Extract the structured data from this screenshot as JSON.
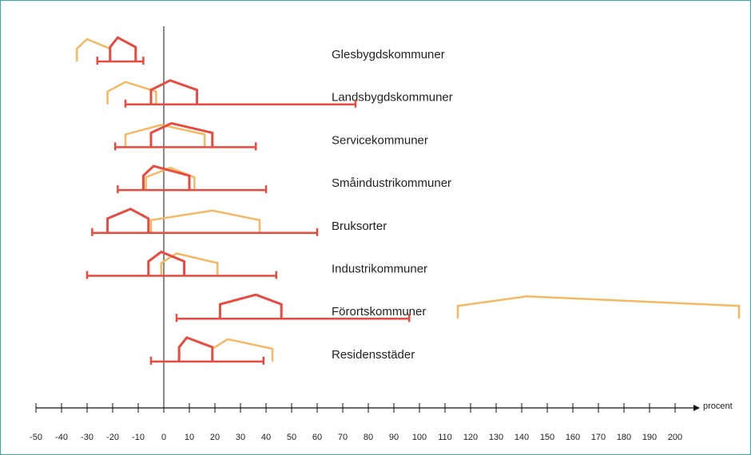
{
  "chart_data": {
    "type": "range-house",
    "x_axis_label": "procent",
    "xlim": [
      -50,
      200
    ],
    "xticks": [
      -50,
      -40,
      -30,
      -20,
      -10,
      0,
      10,
      20,
      30,
      40,
      50,
      60,
      70,
      80,
      90,
      100,
      110,
      120,
      130,
      140,
      150,
      160,
      170,
      180,
      190,
      200
    ],
    "red_color": "#e84a3f",
    "orange_color": "#f5b860",
    "rows": [
      {
        "label": "Glesbygdskommuner",
        "range": [
          -26,
          -8
        ],
        "red": [
          -21,
          -18,
          -11
        ],
        "orange": [
          -34,
          -30,
          -21
        ]
      },
      {
        "label": "Landsbygdskommuner",
        "range": [
          -15,
          75
        ],
        "red": [
          -5,
          2.5,
          13
        ],
        "orange": [
          -22,
          -15,
          -3
        ]
      },
      {
        "label": "Servicekommuner",
        "range": [
          -19,
          36
        ],
        "red": [
          -5,
          3,
          19
        ],
        "orange": [
          -15,
          -1,
          16
        ]
      },
      {
        "label": "Småindustrikommuner",
        "range": [
          -18,
          40
        ],
        "red": [
          -8,
          -4,
          10
        ],
        "orange": [
          -7,
          2.5,
          12
        ]
      },
      {
        "label": "Bruksorter",
        "range": [
          -28,
          60
        ],
        "red": [
          -22,
          -13,
          -6
        ],
        "orange": [
          -5,
          19,
          37.5
        ]
      },
      {
        "label": "Industrikommuner",
        "range": [
          -30,
          44
        ],
        "red": [
          -6,
          -1,
          8
        ],
        "orange": [
          -1,
          5,
          21
        ]
      },
      {
        "label": "Förortskommuner",
        "range": [
          5,
          96
        ],
        "red": [
          22,
          36,
          46
        ],
        "orange": [
          115,
          142,
          225
        ]
      },
      {
        "label": "Residensstäder",
        "range": [
          -5,
          39
        ],
        "red": [
          6,
          9,
          19
        ],
        "orange": [
          19,
          25,
          42.5
        ]
      }
    ]
  }
}
